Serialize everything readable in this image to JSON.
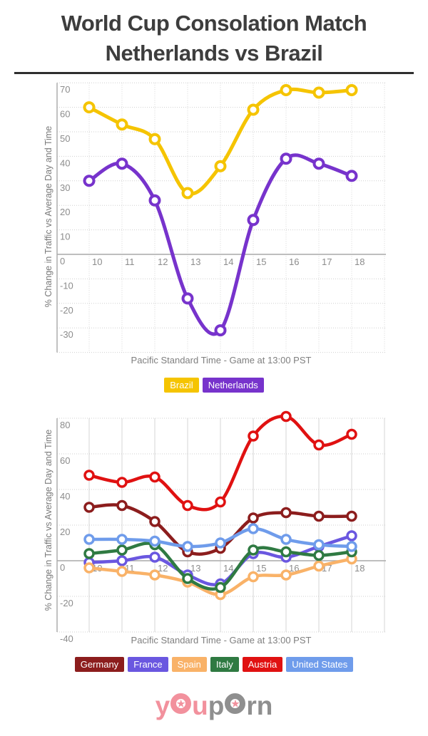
{
  "title": {
    "line1": "World Cup Consolation Match",
    "line2": "Netherlands vs Brazil"
  },
  "logo": {
    "pink_text": "you",
    "gray_text": "porn",
    "pink_color": "#f2919d",
    "gray_color": "#8f8f8f",
    "star_icon": "★"
  },
  "chart_data": [
    {
      "type": "line",
      "x": [
        10,
        11,
        12,
        13,
        14,
        15,
        16,
        17,
        18
      ],
      "xlabel": "Pacific Standard Time - Game at 13:00 PST",
      "ylabel": "% Change in Traffic vs Average Day and Time",
      "ylim": [
        -40,
        70
      ],
      "ytick_step": 10,
      "grid": "on",
      "legend_position": "bottom",
      "series": [
        {
          "name": "Brazil",
          "color": "#F5C400",
          "values": [
            60,
            53,
            47,
            25,
            36,
            59,
            67,
            66,
            67
          ]
        },
        {
          "name": "Netherlands",
          "color": "#7733CC",
          "values": [
            30,
            37,
            22,
            -18,
            -31,
            14,
            39,
            37,
            32
          ]
        }
      ]
    },
    {
      "type": "line",
      "x": [
        10,
        11,
        12,
        13,
        14,
        15,
        16,
        17,
        18
      ],
      "xlabel": "Pacific Standard Time - Game at 13:00 PST",
      "ylabel": "% Change in Traffic vs Average Day and Time",
      "ylim": [
        -40,
        80
      ],
      "ytick_step": 20,
      "grid": "on",
      "legend_position": "bottom",
      "series": [
        {
          "name": "Germany",
          "color": "#8C1D1D",
          "values": [
            30,
            31,
            22,
            5,
            7,
            24,
            27,
            25,
            25
          ]
        },
        {
          "name": "France",
          "color": "#6A57E0",
          "values": [
            -1,
            0,
            2,
            -8,
            -13,
            4,
            2,
            8,
            14
          ]
        },
        {
          "name": "Spain",
          "color": "#F9B268",
          "values": [
            -4,
            -6,
            -8,
            -12,
            -19,
            -9,
            -8,
            -3,
            1
          ]
        },
        {
          "name": "Italy",
          "color": "#2F7A42",
          "values": [
            4,
            6,
            9,
            -10,
            -15,
            6,
            5,
            3,
            5
          ]
        },
        {
          "name": "Austria",
          "color": "#E01111",
          "values": [
            48,
            44,
            47,
            31,
            33,
            70,
            81,
            65,
            71
          ]
        },
        {
          "name": "United States",
          "color": "#6F9CEB",
          "values": [
            12,
            12,
            11,
            8,
            10,
            18,
            12,
            9,
            8
          ]
        }
      ]
    }
  ]
}
